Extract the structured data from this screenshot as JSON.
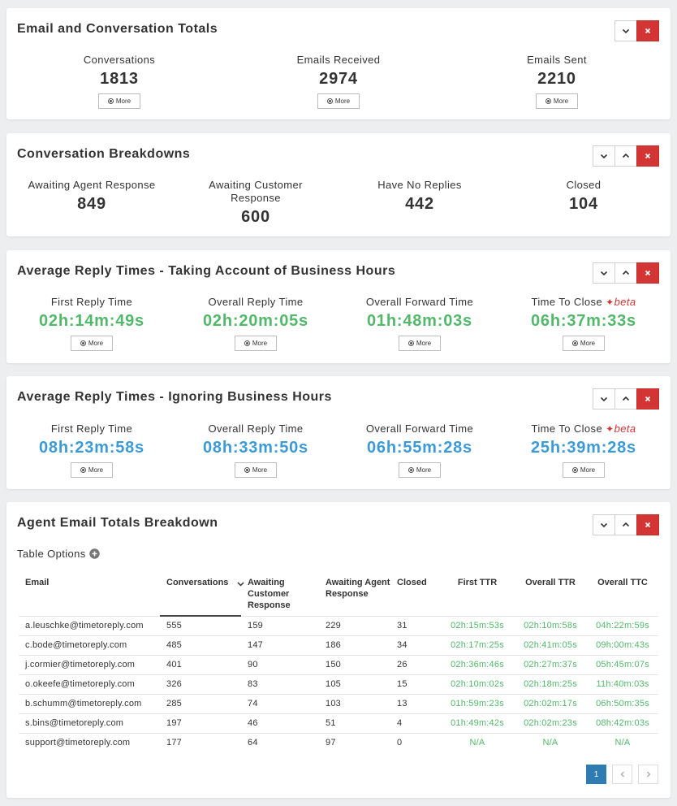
{
  "panels": {
    "totals": {
      "title": "Email and Conversation Totals",
      "stats": [
        {
          "label": "Conversations",
          "value": "1813"
        },
        {
          "label": "Emails Received",
          "value": "2974"
        },
        {
          "label": "Emails Sent",
          "value": "2210"
        }
      ]
    },
    "breakdowns": {
      "title": "Conversation Breakdowns",
      "stats": [
        {
          "label": "Awaiting Agent Response",
          "value": "849"
        },
        {
          "label": "Awaiting Customer Response",
          "value": "600"
        },
        {
          "label": "Have No Replies",
          "value": "442"
        },
        {
          "label": "Closed",
          "value": "104"
        }
      ]
    },
    "business": {
      "title": "Average Reply Times - Taking Account of Business Hours",
      "stats": [
        {
          "label": "First Reply Time",
          "value": "02h:14m:49s"
        },
        {
          "label": "Overall Reply Time",
          "value": "02h:20m:05s"
        },
        {
          "label": "Overall Forward Time",
          "value": "01h:48m:03s"
        },
        {
          "label": "Time To Close",
          "value": "06h:37m:33s"
        }
      ]
    },
    "ignoring": {
      "title": "Average Reply Times - Ignoring Business Hours",
      "stats": [
        {
          "label": "First Reply Time",
          "value": "08h:23m:58s"
        },
        {
          "label": "Overall Reply Time",
          "value": "08h:33m:50s"
        },
        {
          "label": "Overall Forward Time",
          "value": "06h:55m:28s"
        },
        {
          "label": "Time To Close",
          "value": "25h:39m:28s"
        }
      ]
    },
    "agents": {
      "title": "Agent Email Totals Breakdown",
      "table_options": "Table Options",
      "columns": [
        "Email",
        "Conversations",
        "Awaiting Customer Response",
        "Awaiting Agent Response",
        "Closed",
        "First TTR",
        "Overall TTR",
        "Overall TTC"
      ],
      "rows": [
        [
          "a.leuschke@timetoreply.com",
          "555",
          "159",
          "229",
          "31",
          "02h:15m:53s",
          "02h:10m:58s",
          "04h:22m:59s"
        ],
        [
          "c.bode@timetoreply.com",
          "485",
          "147",
          "186",
          "34",
          "02h:17m:25s",
          "02h:41m:05s",
          "09h:00m:43s"
        ],
        [
          "j.cormier@timetoreply.com",
          "401",
          "90",
          "150",
          "26",
          "02h:36m:46s",
          "02h:27m:37s",
          "05h:45m:07s"
        ],
        [
          "o.okeefe@timetoreply.com",
          "326",
          "83",
          "105",
          "15",
          "02h:10m:02s",
          "02h:18m:25s",
          "11h:40m:03s"
        ],
        [
          "b.schumm@timetoreply.com",
          "285",
          "74",
          "103",
          "13",
          "01h:59m:23s",
          "02h:02m:17s",
          "06h:50m:35s"
        ],
        [
          "s.bins@timetoreply.com",
          "197",
          "46",
          "51",
          "4",
          "01h:49m:42s",
          "02h:02m:23s",
          "08h:42m:03s"
        ],
        [
          "support@timetoreply.com",
          "177",
          "64",
          "97",
          "0",
          "N/A",
          "N/A",
          "N/A"
        ]
      ],
      "page": "1"
    }
  },
  "more_label": "More",
  "beta_label": "beta",
  "colors": {
    "green": "#52b86a",
    "blue": "#3c9ad6",
    "close": "#d33535",
    "pager_active": "#2f7cb2"
  }
}
